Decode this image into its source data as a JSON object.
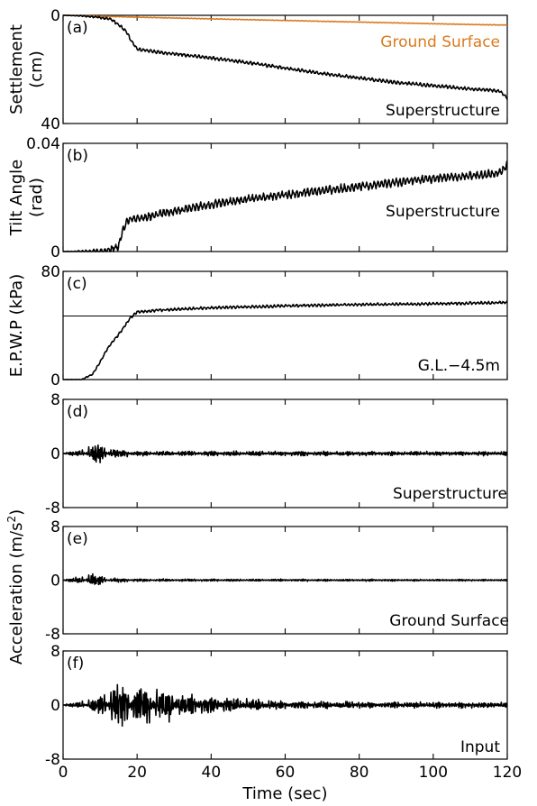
{
  "chart_data": [
    {
      "type": "line",
      "panel_label": "(a)",
      "ylabel": "Settlement",
      "ylabel_unit": "(cm)",
      "ylim": [
        0,
        40
      ],
      "y_inverted": true,
      "yticks": [
        "0",
        "40"
      ],
      "xlim": [
        0,
        120
      ],
      "grid": false,
      "series": [
        {
          "name": "Ground Surface",
          "color": "#d97a1e",
          "x": [
            0,
            10,
            20,
            30,
            40,
            50,
            60,
            70,
            80,
            90,
            100,
            110,
            120
          ],
          "y": [
            0,
            0.3,
            0.7,
            1.0,
            1.3,
            1.6,
            1.9,
            2.2,
            2.5,
            2.8,
            3.1,
            3.4,
            3.6
          ],
          "noise": 0.1
        },
        {
          "name": "Superstructure",
          "color": "#000000",
          "x": [
            0,
            5,
            10,
            13,
            15,
            17,
            18,
            20,
            25,
            30,
            40,
            50,
            60,
            70,
            80,
            90,
            100,
            110,
            118,
            120
          ],
          "y": [
            0,
            0.2,
            0.8,
            1.5,
            3.5,
            5.8,
            8.5,
            12.5,
            13.5,
            14.2,
            15.8,
            17.5,
            19.5,
            21.5,
            23.2,
            24.8,
            26.0,
            27.2,
            28.0,
            30.5
          ],
          "noise": 0.6
        }
      ]
    },
    {
      "type": "line",
      "panel_label": "(b)",
      "ylabel": "Tilt Angle",
      "ylabel_unit": "(rad)",
      "ylim": [
        0,
        0.04
      ],
      "yticks": [
        "0",
        "0.04"
      ],
      "xlim": [
        0,
        120
      ],
      "grid": false,
      "series": [
        {
          "name": "Superstructure",
          "color": "#000000",
          "x": [
            0,
            8,
            12,
            15,
            16,
            17,
            18,
            20,
            25,
            30,
            40,
            50,
            60,
            70,
            80,
            90,
            100,
            110,
            118,
            120
          ],
          "y": [
            0,
            0,
            0.0003,
            0.002,
            0.007,
            0.011,
            0.012,
            0.012,
            0.0135,
            0.015,
            0.0175,
            0.0195,
            0.021,
            0.0225,
            0.024,
            0.0255,
            0.027,
            0.028,
            0.029,
            0.032
          ],
          "noise": 0.0015
        }
      ]
    },
    {
      "type": "line",
      "panel_label": "(c)",
      "ylabel": "E.P.W.P (kPa)",
      "ylim": [
        0,
        80
      ],
      "yticks": [
        "0",
        "80"
      ],
      "xlim": [
        0,
        120
      ],
      "grid": false,
      "reference_line": 47,
      "series": [
        {
          "name": "G.L.−4.5m",
          "color": "#000000",
          "x": [
            0,
            5,
            8,
            10,
            12,
            14,
            16,
            18,
            20,
            25,
            30,
            40,
            60,
            80,
            100,
            120
          ],
          "y": [
            0,
            0,
            4,
            13,
            23,
            30,
            37,
            45,
            50,
            51,
            52,
            53,
            54.5,
            55.5,
            56,
            57
          ],
          "noise": 1.0
        }
      ]
    },
    {
      "type": "line",
      "panel_label": "(d)",
      "ylim": [
        -8,
        8
      ],
      "yticks": [
        "8",
        "0",
        "-8"
      ],
      "xlim": [
        0,
        120
      ],
      "grid": false,
      "series": [
        {
          "name": "Superstructure",
          "color": "#000000",
          "envelope": {
            "t": [
              0,
              5,
              10,
              12,
              20,
              120
            ],
            "amp": [
              0.1,
              0.4,
              1.5,
              0.6,
              0.3,
              0.25
            ]
          }
        }
      ]
    },
    {
      "type": "line",
      "panel_label": "(e)",
      "ylim": [
        -8,
        8
      ],
      "yticks": [
        "8",
        "0",
        "-8"
      ],
      "xlim": [
        0,
        120
      ],
      "grid": false,
      "series": [
        {
          "name": "Ground Surface",
          "color": "#000000",
          "envelope": {
            "t": [
              0,
              3,
              8,
              12,
              20,
              120
            ],
            "amp": [
              0.1,
              0.3,
              0.8,
              0.3,
              0.15,
              0.1
            ]
          }
        }
      ]
    },
    {
      "type": "line",
      "panel_label": "(f)",
      "ylim": [
        -8,
        8
      ],
      "yticks": [
        "8",
        "0",
        "-8"
      ],
      "xlim": [
        0,
        120
      ],
      "xticks": [
        "0",
        "20",
        "40",
        "60",
        "80",
        "100",
        "120"
      ],
      "xlabel": "Time (sec)",
      "grid": false,
      "series": [
        {
          "name": "Input",
          "color": "#000000",
          "envelope": {
            "t": [
              0,
              5,
              10,
              15,
              20,
              25,
              35,
              45,
              60,
              80,
              120
            ],
            "amp": [
              0.1,
              0.4,
              1.2,
              2.8,
              2.5,
              2.2,
              1.4,
              0.9,
              0.5,
              0.4,
              0.35
            ]
          }
        }
      ]
    }
  ],
  "shared_ylabel_accel": "Acceleration (m/s",
  "shared_ylabel_accel_sup": "2",
  "shared_ylabel_accel_end": ")"
}
